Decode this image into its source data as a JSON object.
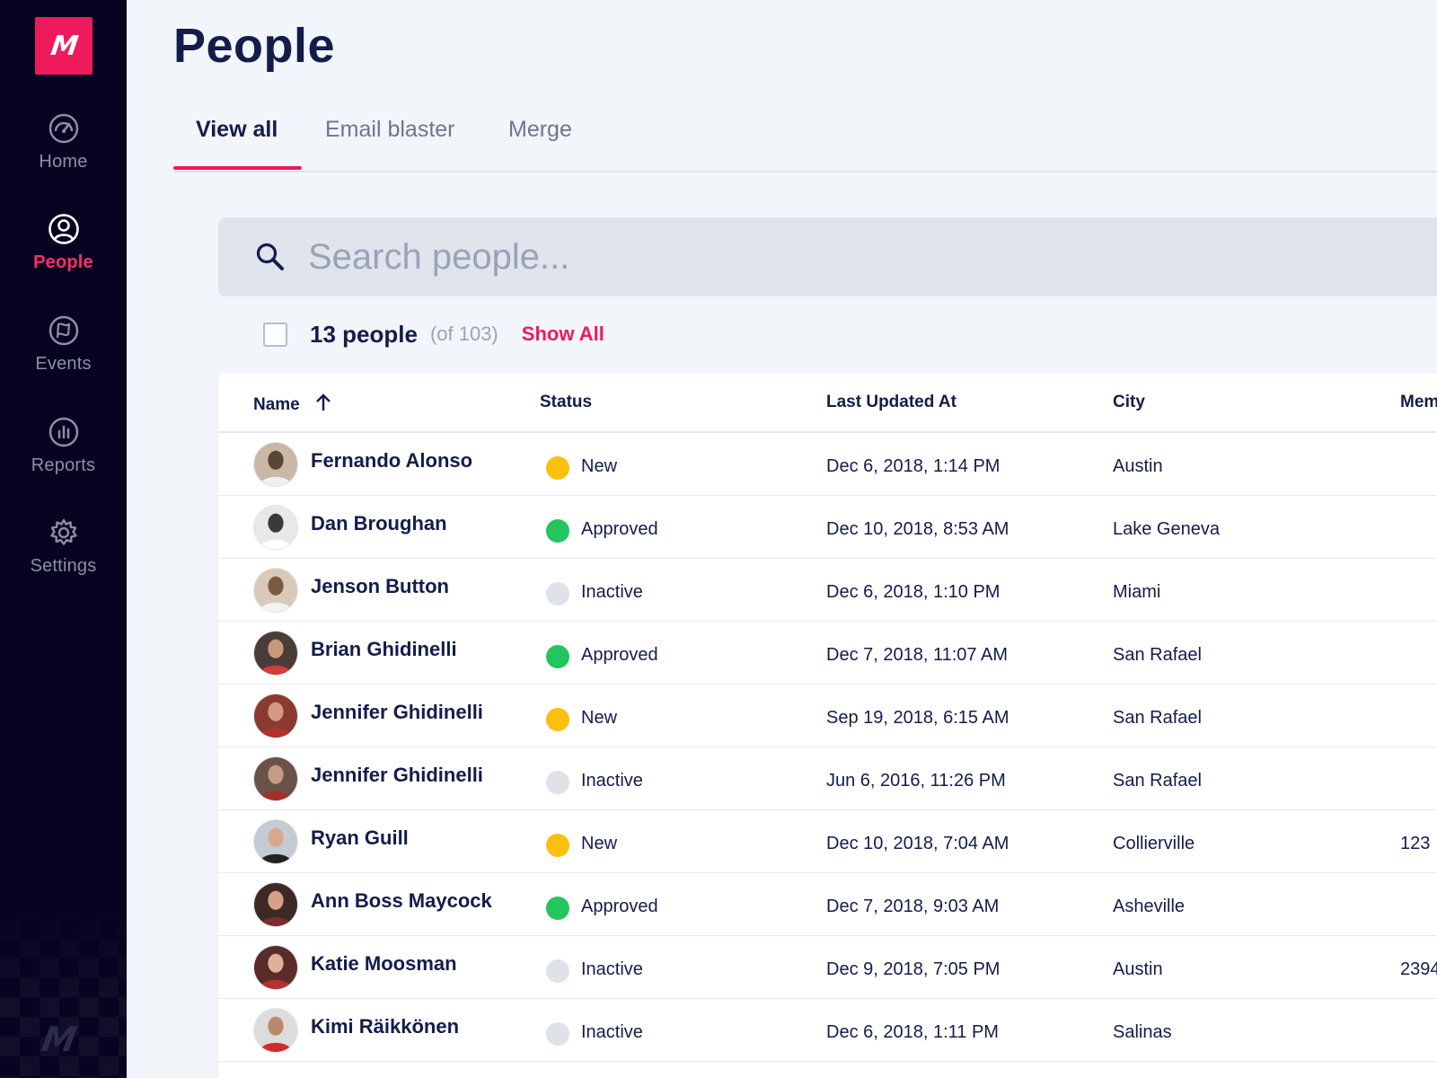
{
  "app": {
    "logo_text": "M",
    "accent_color": "#ee1a5b",
    "sidebar_bg": "#070421"
  },
  "sidebar": {
    "items": [
      {
        "label": "Home",
        "icon": "speedometer-icon",
        "active": false
      },
      {
        "label": "People",
        "icon": "user-circle-icon",
        "active": true
      },
      {
        "label": "Events",
        "icon": "flag-icon",
        "active": false
      },
      {
        "label": "Reports",
        "icon": "bar-chart-icon",
        "active": false
      },
      {
        "label": "Settings",
        "icon": "gear-icon",
        "active": false
      }
    ]
  },
  "page": {
    "title": "People"
  },
  "tabs": [
    {
      "label": "View all",
      "active": true
    },
    {
      "label": "Email blaster",
      "active": false
    },
    {
      "label": "Merge",
      "active": false
    }
  ],
  "search": {
    "placeholder": "Search people...",
    "value": ""
  },
  "summary": {
    "count_label": "13 people",
    "total_label": "(of 103)",
    "show_all_label": "Show All"
  },
  "table": {
    "columns": {
      "name": "Name",
      "status": "Status",
      "updated": "Last Updated At",
      "city": "City",
      "membership": "Mem"
    },
    "sort": {
      "column": "Name",
      "direction": "ascending"
    },
    "status_colors": {
      "New": "#fbbf0e",
      "Approved": "#22c55e",
      "Inactive": "#dfe2e8"
    },
    "rows": [
      {
        "name": "Fernando Alonso",
        "status": "New",
        "updated": "Dec 6, 2018, 1:14 PM",
        "city": "Austin",
        "membership": ""
      },
      {
        "name": "Dan Broughan",
        "status": "Approved",
        "updated": "Dec 10, 2018, 8:53 AM",
        "city": "Lake Geneva",
        "membership": ""
      },
      {
        "name": "Jenson Button",
        "status": "Inactive",
        "updated": "Dec 6, 2018, 1:10 PM",
        "city": "Miami",
        "membership": ""
      },
      {
        "name": "Brian Ghidinelli",
        "status": "Approved",
        "updated": "Dec 7, 2018, 11:07 AM",
        "city": "San Rafael",
        "membership": ""
      },
      {
        "name": "Jennifer Ghidinelli",
        "status": "New",
        "updated": "Sep 19, 2018, 6:15 AM",
        "city": "San Rafael",
        "membership": ""
      },
      {
        "name": "Jennifer Ghidinelli",
        "status": "Inactive",
        "updated": "Jun 6, 2016, 11:26 PM",
        "city": "San Rafael",
        "membership": ""
      },
      {
        "name": "Ryan Guill",
        "status": "New",
        "updated": "Dec 10, 2018, 7:04 AM",
        "city": "Collierville",
        "membership": "123"
      },
      {
        "name": "Ann Boss Maycock",
        "status": "Approved",
        "updated": "Dec 7, 2018, 9:03 AM",
        "city": "Asheville",
        "membership": ""
      },
      {
        "name": "Katie Moosman",
        "status": "Inactive",
        "updated": "Dec 9, 2018, 7:05 PM",
        "city": "Austin",
        "membership": "2394"
      },
      {
        "name": "Kimi Räikkönen",
        "status": "Inactive",
        "updated": "Dec 6, 2018, 1:11 PM",
        "city": "Salinas",
        "membership": ""
      }
    ]
  }
}
